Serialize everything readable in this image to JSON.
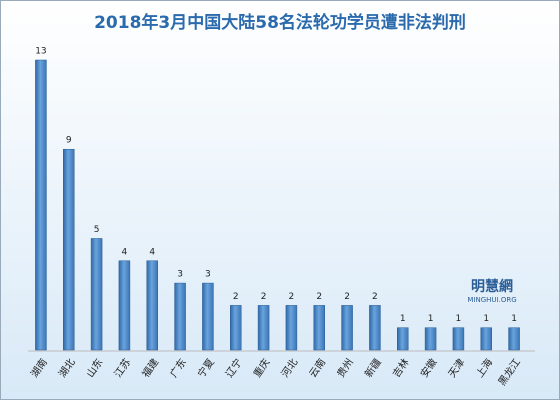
{
  "chart_data": {
    "type": "bar",
    "title": "2018年3月中国大陆58名法轮功学员遭非法判刑",
    "categories": [
      "湖南",
      "湖北",
      "山东",
      "江苏",
      "福建",
      "广东",
      "宁夏",
      "辽宁",
      "重庆",
      "河北",
      "云南",
      "贵州",
      "新疆",
      "吉林",
      "安徽",
      "天津",
      "上海",
      "黑龙江"
    ],
    "values": [
      13,
      9,
      5,
      4,
      4,
      3,
      3,
      2,
      2,
      2,
      2,
      2,
      2,
      1,
      1,
      1,
      1,
      1
    ],
    "color": "#4a86c8",
    "watermark": {
      "title": "明慧網",
      "subtitle": "MINGHUI.ORG"
    }
  }
}
